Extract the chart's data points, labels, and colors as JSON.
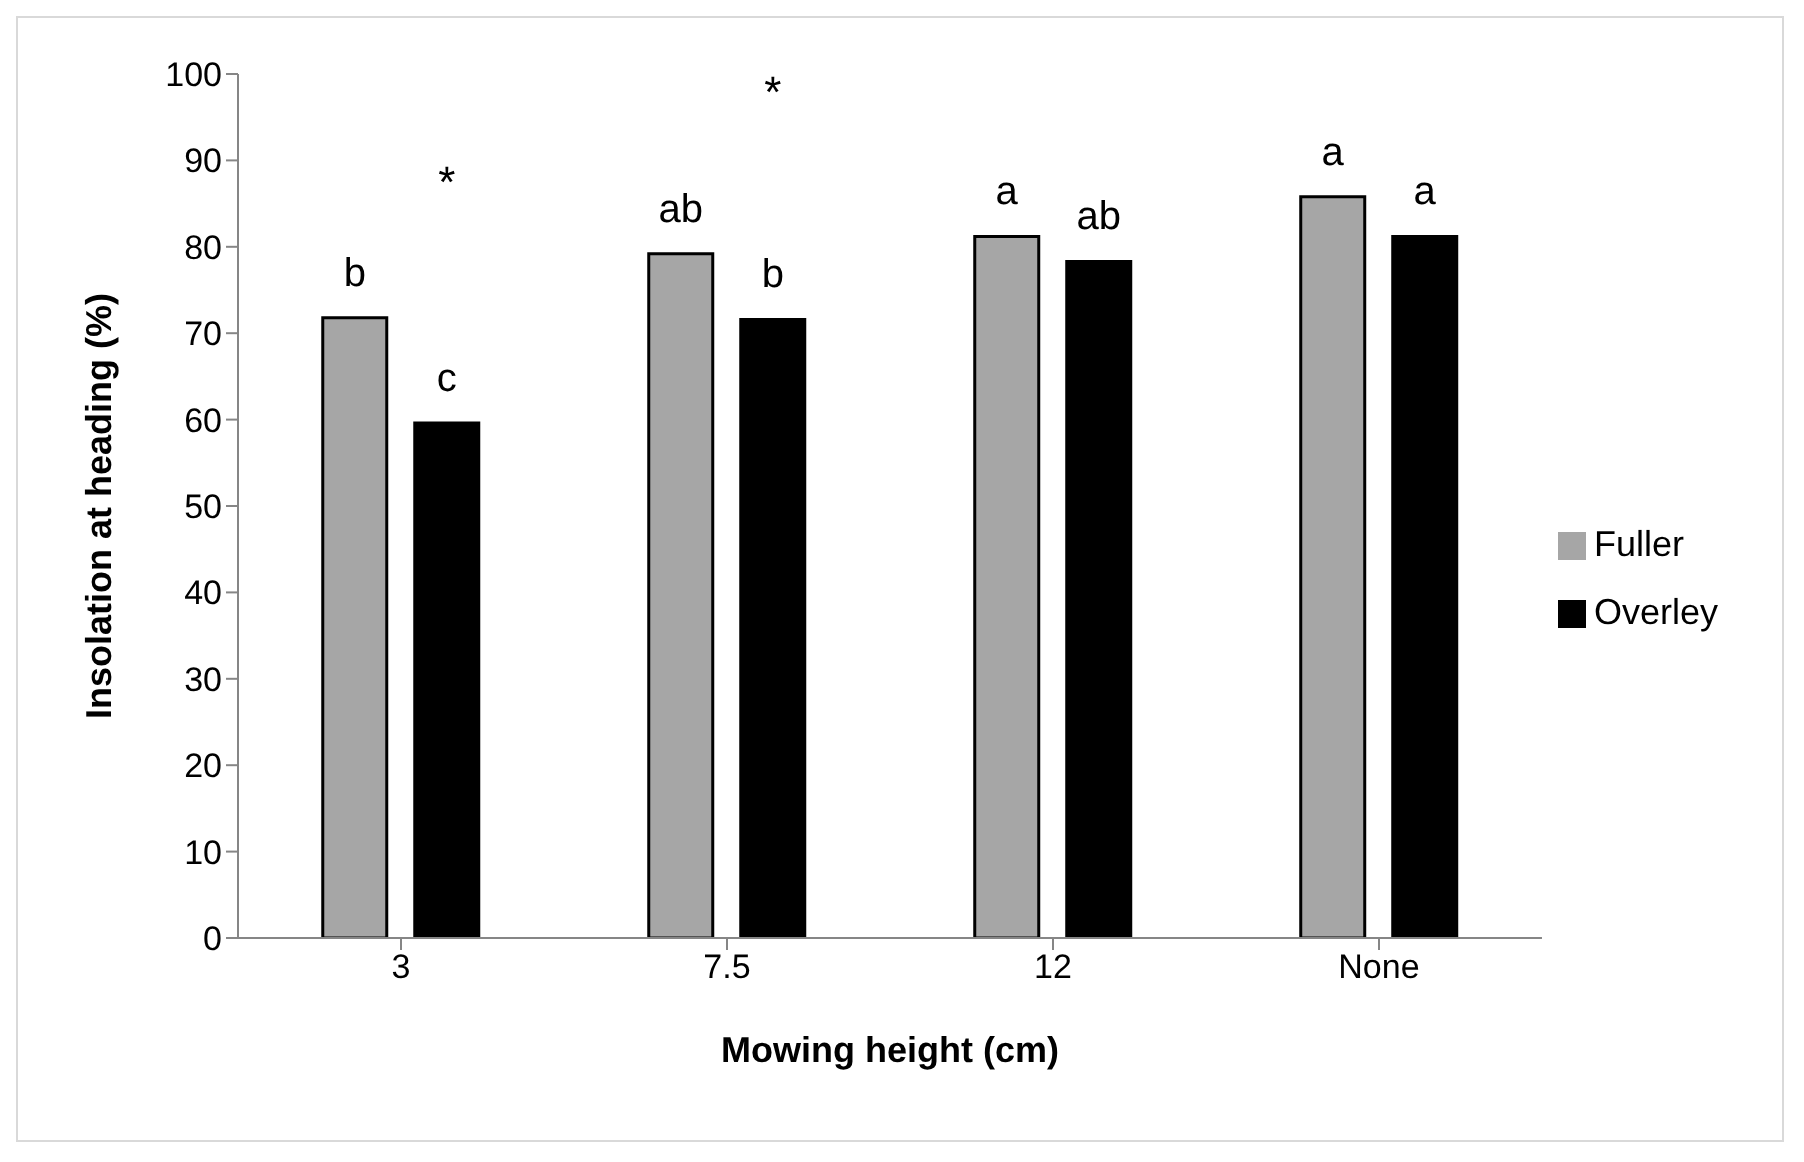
{
  "chart_data": {
    "type": "bar",
    "xlabel": "Mowing height (cm)",
    "ylabel": "Insolation at heading (%)",
    "categories": [
      "3",
      "7.5",
      "12",
      "None"
    ],
    "series": [
      {
        "name": "Fuller",
        "color": "#a6a6a6",
        "values": [
          71.8,
          79.2,
          81.2,
          85.8
        ],
        "value_labels": [
          "b",
          "ab",
          "a",
          "a"
        ]
      },
      {
        "name": "Overley",
        "color": "#000000",
        "values": [
          59.6,
          71.6,
          78.3,
          81.2
        ],
        "value_labels": [
          "c",
          "b",
          "ab",
          "a"
        ]
      }
    ],
    "annotations": [
      "*",
      "*"
    ],
    "ylim": [
      0,
      100
    ],
    "yticks": [
      0,
      10,
      20,
      30,
      40,
      50,
      60,
      70,
      80,
      90,
      100
    ],
    "grid": false,
    "legend": "right"
  }
}
